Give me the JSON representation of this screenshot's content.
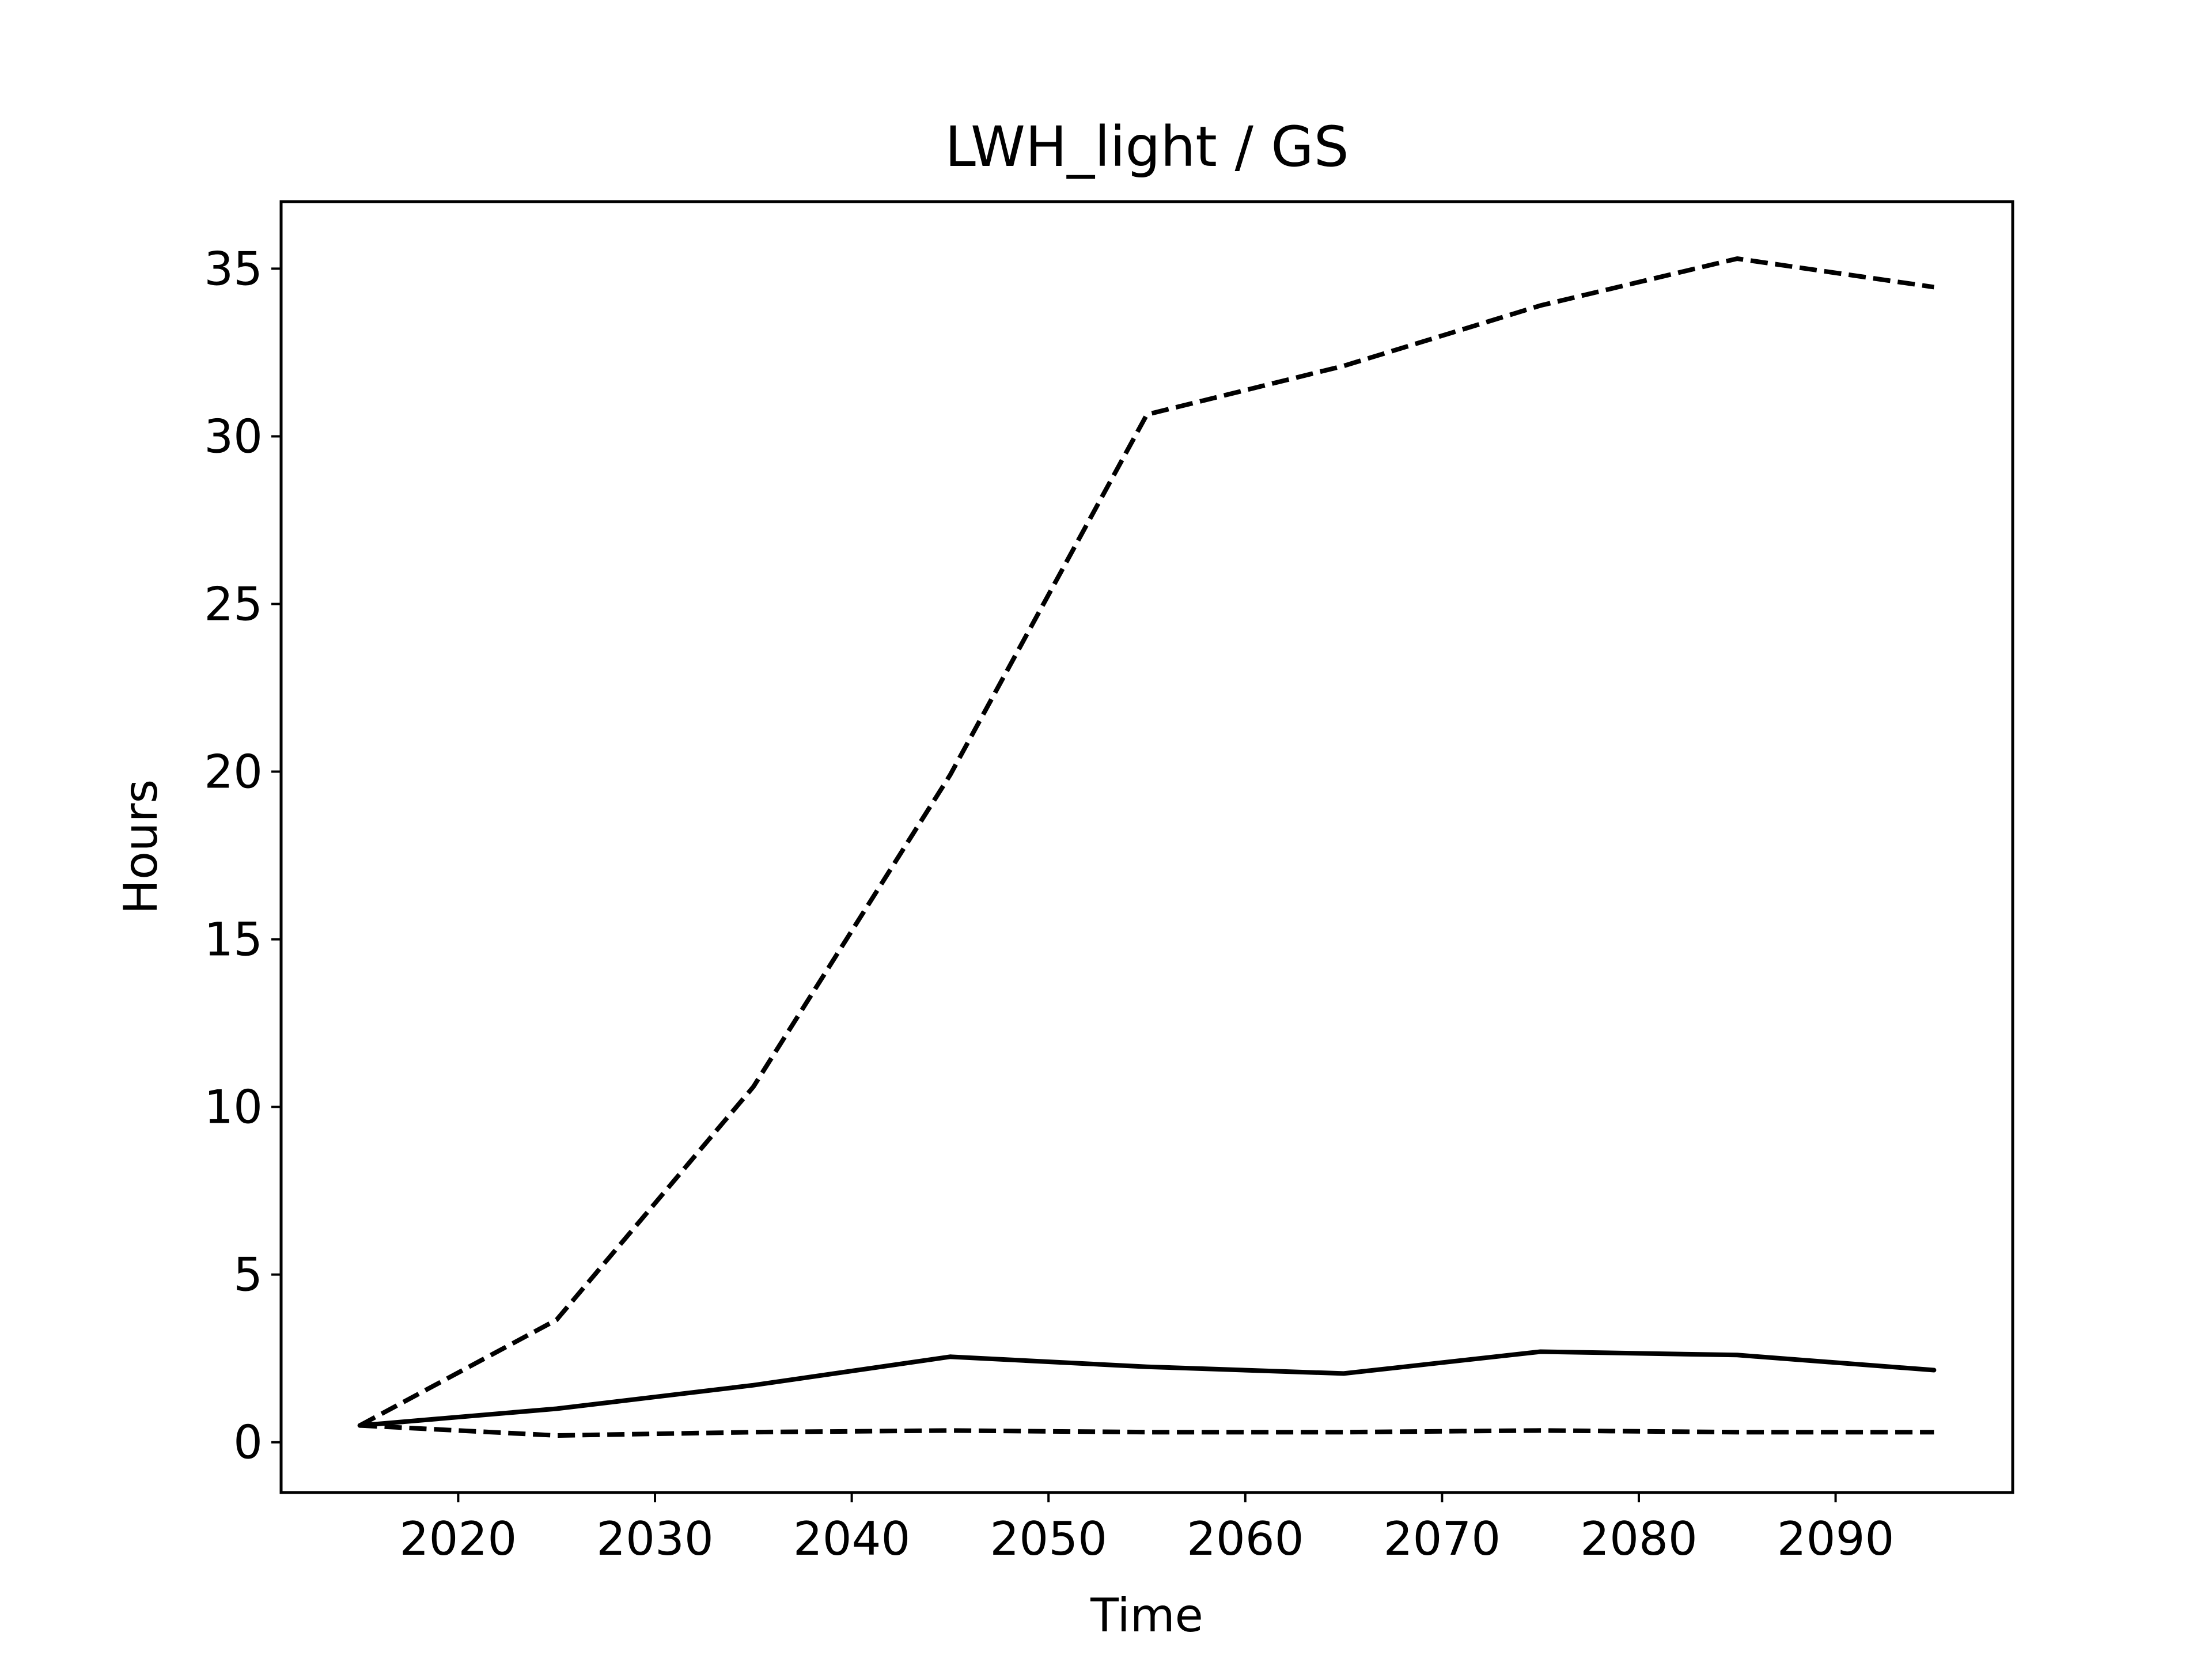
{
  "chart_data": {
    "type": "line",
    "title": "LWH_light / GS",
    "xlabel": "Time",
    "ylabel": "Hours",
    "xlim": [
      2011,
      2099
    ],
    "ylim": [
      -1.5,
      37
    ],
    "xticks": [
      2020,
      2030,
      2040,
      2050,
      2060,
      2070,
      2080,
      2090
    ],
    "yticks": [
      0,
      5,
      10,
      15,
      20,
      25,
      30,
      35
    ],
    "grid": false,
    "legend": "none",
    "x": [
      2015,
      2025,
      2035,
      2045,
      2055,
      2065,
      2075,
      2085,
      2095
    ],
    "series": [
      {
        "style": "solid",
        "color": "#000000",
        "values": [
          0.5,
          1.0,
          1.7,
          2.55,
          2.25,
          2.05,
          2.7,
          2.6,
          2.15
        ]
      },
      {
        "style": "dashed",
        "color": "#000000",
        "values": [
          0.5,
          3.65,
          10.6,
          19.9,
          30.65,
          32.1,
          33.9,
          35.3,
          34.45
        ]
      },
      {
        "style": "dashed",
        "color": "#000000",
        "values": [
          0.5,
          0.2,
          0.3,
          0.35,
          0.3,
          0.3,
          0.35,
          0.3,
          0.3
        ]
      }
    ]
  }
}
